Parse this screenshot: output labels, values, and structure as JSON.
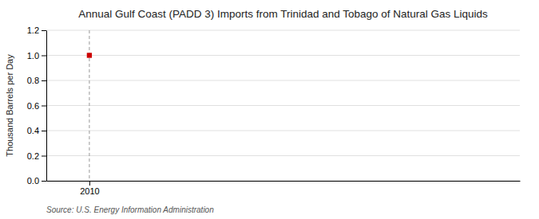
{
  "chart_data": {
    "type": "scatter",
    "title": "Annual Gulf Coast (PADD 3) Imports from Trinidad and Tobago of Natural Gas Liquids",
    "ylabel": "Thousand Barrels per Day",
    "source": "Source: U.S. Energy Information Administration",
    "x": [
      2010
    ],
    "values": [
      1.0
    ],
    "color": "#cc0000",
    "marker": "square",
    "xlim": [
      2009.5,
      2015.0
    ],
    "xticks": [
      2010
    ],
    "ylim": [
      0.0,
      1.2
    ],
    "yticks": [
      {
        "value": 0.0,
        "label": "0.0"
      },
      0.2,
      0.4,
      0.6,
      0.8,
      {
        "value": 1.0,
        "label": "1.0"
      },
      1.2
    ],
    "grid": true
  }
}
